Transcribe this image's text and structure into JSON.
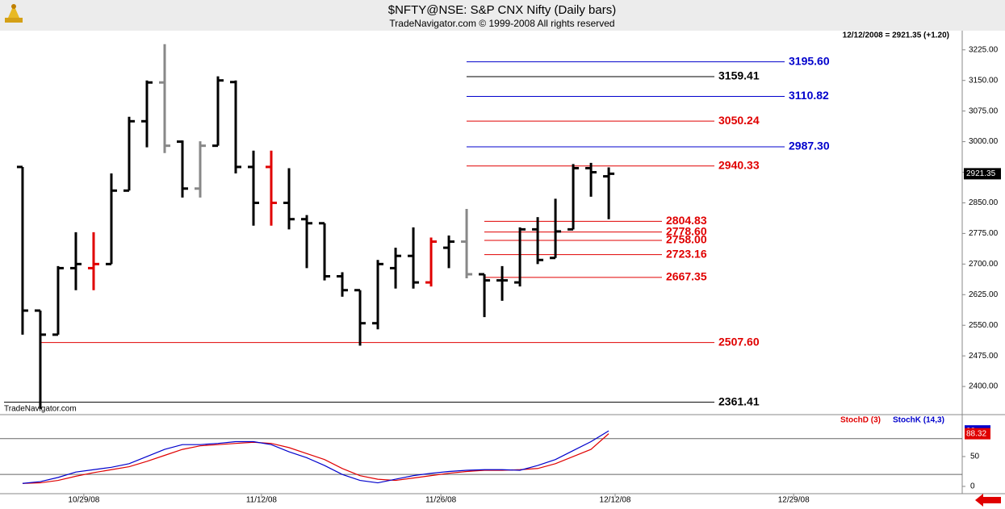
{
  "chart_data": [
    {
      "type": "ohlc",
      "title": "$NFTY@NSE:  S&P CNX Nifty  (Daily bars)",
      "subtitle": "TradeNavigator.com © 1999-2008 All rights reserved",
      "status": "12/12/2008 = 2921.35 (+1.20)",
      "watermark": "TradeNavigator.com",
      "x": [
        0,
        1,
        2,
        3,
        4,
        5,
        6,
        7,
        8,
        9,
        10,
        11,
        12,
        13,
        14,
        15,
        16,
        17,
        18,
        19,
        20,
        21,
        22,
        23,
        24,
        25,
        26,
        27,
        28,
        29,
        30,
        31,
        32,
        33
      ],
      "open": [
        2938,
        2586,
        2527,
        2690,
        2690,
        2700,
        2880,
        3050,
        3145,
        3000,
        2885,
        2990,
        3146,
        2938,
        2938,
        2850,
        2810,
        2800,
        2670,
        2636,
        2555,
        2690,
        2720,
        2655,
        2740,
        2755,
        2675,
        2660,
        2655,
        2785,
        2715,
        2785,
        2935,
        2915
      ],
      "high": [
        2938,
        2586,
        2695,
        2778,
        2778,
        2922,
        3061,
        3150,
        3239,
        3003,
        3001,
        3160,
        3150,
        2978,
        2978,
        2935,
        2820,
        2800,
        2680,
        2636,
        2710,
        2740,
        2790,
        2765,
        2770,
        2835,
        2675,
        2695,
        2790,
        2815,
        2860,
        2945,
        2948,
        2937
      ],
      "low": [
        2527,
        2345,
        2527,
        2636,
        2636,
        2700,
        2880,
        2986,
        2972,
        2863,
        2863,
        2990,
        2922,
        2794,
        2794,
        2785,
        2690,
        2660,
        2620,
        2500,
        2540,
        2640,
        2640,
        2645,
        2690,
        2665,
        2570,
        2610,
        2645,
        2700,
        2715,
        2785,
        2865,
        2810
      ],
      "close": [
        2586,
        2527,
        2690,
        2700,
        2700,
        2880,
        3050,
        3145,
        2990,
        2885,
        2990,
        3150,
        2938,
        2850,
        2850,
        2810,
        2800,
        2670,
        2636,
        2555,
        2700,
        2720,
        2655,
        2755,
        2755,
        2675,
        2660,
        2660,
        2785,
        2710,
        2780,
        2935,
        2925,
        2921.35
      ],
      "colors": [
        "#000000",
        "#000000",
        "#000000",
        "#000000",
        "#e00000",
        "#000000",
        "#000000",
        "#000000",
        "#888888",
        "#000000",
        "#888888",
        "#000000",
        "#000000",
        "#000000",
        "#e00000",
        "#000000",
        "#000000",
        "#000000",
        "#000000",
        "#000000",
        "#000000",
        "#000000",
        "#000000",
        "#e00000",
        "#000000",
        "#888888",
        "#000000",
        "#000000",
        "#000000",
        "#000000",
        "#000000",
        "#000000",
        "#000000",
        "#000000"
      ],
      "xlim": [
        -1.27,
        52.9
      ],
      "ylim": [
        2333,
        3272
      ],
      "yticks": [
        {
          "value": 2400,
          "label": "2400.00"
        },
        {
          "value": 2475,
          "label": "2475.00"
        },
        {
          "value": 2550,
          "label": "2550.00"
        },
        {
          "value": 2625,
          "label": "2625.00"
        },
        {
          "value": 2700,
          "label": "2700.00"
        },
        {
          "value": 2775,
          "label": "2775.00"
        },
        {
          "value": 2850,
          "label": "2850.00"
        },
        {
          "value": 2925,
          "label": "2925.00"
        },
        {
          "value": 3000,
          "label": "3000.00"
        },
        {
          "value": 3075,
          "label": "3075.00"
        },
        {
          "value": 3150,
          "label": "3150.00"
        },
        {
          "value": 3225,
          "label": "3225.00"
        }
      ],
      "levels": [
        {
          "value": 3195.6,
          "label": "3195.60",
          "color": "#0000cc"
        },
        {
          "value": 3159.41,
          "label": "3159.41",
          "color": "#000000"
        },
        {
          "value": 3110.82,
          "label": "3110.82",
          "color": "#0000cc"
        },
        {
          "value": 3050.24,
          "label": "3050.24",
          "color": "#e00000"
        },
        {
          "value": 2987.3,
          "label": "2987.30",
          "color": "#0000cc"
        },
        {
          "value": 2940.33,
          "label": "2940.33",
          "color": "#e00000"
        },
        {
          "value": 2804.83,
          "label": "2804.83",
          "color": "#e00000"
        },
        {
          "value": 2778.6,
          "label": "2778.60",
          "color": "#e00000"
        },
        {
          "value": 2758,
          "label": "2758.00",
          "color": "#e00000"
        },
        {
          "value": 2723.16,
          "label": "2723.16",
          "color": "#e00000"
        },
        {
          "value": 2667.35,
          "label": "2667.35",
          "color": "#e00000"
        },
        {
          "value": 2507.6,
          "label": "2507.60",
          "color": "#e00000"
        },
        {
          "value": 2361.41,
          "label": "2361.41",
          "color": "#000000"
        }
      ]
    },
    {
      "type": "line",
      "x": [
        0,
        1,
        2,
        3,
        4,
        5,
        6,
        7,
        8,
        9,
        10,
        11,
        12,
        13,
        14,
        15,
        16,
        17,
        18,
        19,
        20,
        21,
        22,
        23,
        24,
        25,
        26,
        27,
        28,
        29,
        30,
        31,
        32,
        33
      ],
      "series": [
        {
          "name": "StochD (3)",
          "color": "#e00000",
          "values": [
            5,
            6,
            10,
            17,
            23,
            28,
            33,
            42,
            52,
            62,
            68,
            70,
            72,
            74,
            72,
            65,
            55,
            45,
            30,
            18,
            12,
            10,
            14,
            18,
            22,
            25,
            27,
            27,
            28,
            30,
            38,
            50,
            62,
            88.32
          ]
        },
        {
          "name": "StochK (14,3)",
          "color": "#0000cc",
          "values": [
            5,
            8,
            15,
            24,
            28,
            32,
            38,
            50,
            62,
            70,
            70,
            72,
            75,
            75,
            70,
            58,
            48,
            35,
            20,
            10,
            6,
            12,
            18,
            22,
            25,
            27,
            28,
            28,
            27,
            35,
            45,
            60,
            75,
            93
          ]
        }
      ],
      "xlim": [
        -1.27,
        52.9
      ],
      "xticks": [
        {
          "value": 3.45,
          "label": "10/29/08"
        },
        {
          "value": 13.45,
          "label": "11/12/08"
        },
        {
          "value": 23.55,
          "label": "11/26/08"
        },
        {
          "value": 33.36,
          "label": "12/12/08"
        },
        {
          "value": 43.41,
          "label": "12/29/08"
        }
      ],
      "ylim": [
        -9.5,
        116.2
      ],
      "yticks": [
        0,
        50
      ],
      "levels": [
        20,
        80
      ]
    }
  ]
}
